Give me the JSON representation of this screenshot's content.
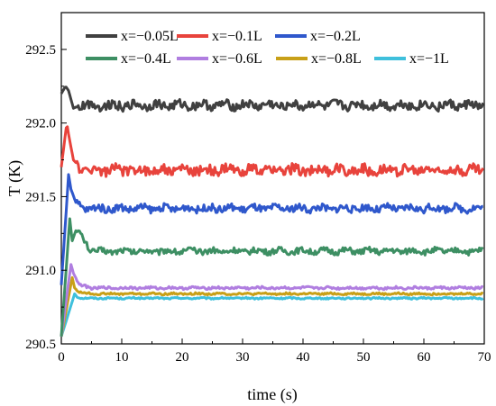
{
  "chart_data": {
    "type": "line",
    "title": "",
    "xlabel": "time (s)",
    "ylabel": "T (K)",
    "xlim": [
      0,
      70
    ],
    "ylim": [
      290.5,
      292.75
    ],
    "x_ticks": [
      0,
      10,
      20,
      30,
      40,
      50,
      60,
      70
    ],
    "x_tick_labels": [
      "0",
      "10",
      "20",
      "30",
      "40",
      "50",
      "60",
      "70"
    ],
    "y_ticks": [
      290.5,
      291.0,
      291.5,
      292.0,
      292.5
    ],
    "y_tick_labels": [
      "290.5",
      "291.0",
      "291.5",
      "292.0",
      "292.5"
    ],
    "grid": false,
    "legend_position": "top",
    "series": [
      {
        "name": "x=−0.05L",
        "color": "#404040",
        "steady": 292.12,
        "peak": 292.25,
        "noise": 0.03,
        "x": [
          0,
          0.7,
          1.2,
          2,
          3,
          70
        ],
        "y": [
          292.2,
          292.25,
          292.22,
          292.1,
          292.12,
          292.12
        ]
      },
      {
        "name": "x=−0.1L",
        "color": "#e8433c",
        "steady": 291.68,
        "peak": 292.0,
        "noise": 0.035,
        "x": [
          0,
          0.9,
          1.3,
          2,
          3.5,
          70
        ],
        "y": [
          291.7,
          292.0,
          291.9,
          291.75,
          291.68,
          291.68
        ]
      },
      {
        "name": "x=−0.2L",
        "color": "#2f58cc",
        "steady": 291.42,
        "peak": 291.65,
        "noise": 0.025,
        "x": [
          0,
          1.2,
          1.6,
          2.5,
          4,
          70
        ],
        "y": [
          290.9,
          291.65,
          291.55,
          291.45,
          291.42,
          291.42
        ]
      },
      {
        "name": "x=−0.4L",
        "color": "#3d8f63",
        "steady": 291.13,
        "peak": 291.35,
        "noise": 0.02,
        "x": [
          0,
          1.4,
          1.8,
          2.5,
          5,
          70
        ],
        "y": [
          290.55,
          291.35,
          291.2,
          291.28,
          291.13,
          291.13
        ]
      },
      {
        "name": "x=−0.6L",
        "color": "#b07ee0",
        "steady": 290.88,
        "peak": 291.04,
        "noise": 0.008,
        "x": [
          0,
          1.6,
          2,
          3,
          5,
          70
        ],
        "y": [
          290.55,
          291.04,
          290.98,
          290.9,
          290.88,
          290.88
        ]
      },
      {
        "name": "x=−0.8L",
        "color": "#c8a018",
        "steady": 290.84,
        "peak": 290.95,
        "noise": 0.006,
        "x": [
          0,
          1.8,
          2.2,
          3,
          5,
          70
        ],
        "y": [
          290.55,
          290.95,
          290.88,
          290.85,
          290.84,
          290.84
        ]
      },
      {
        "name": "x=−1L",
        "color": "#3fc0dc",
        "steady": 290.81,
        "peak": 290.84,
        "noise": 0.005,
        "x": [
          0,
          2.2,
          2.6,
          3.5,
          5,
          70
        ],
        "y": [
          290.55,
          290.84,
          290.82,
          290.81,
          290.81,
          290.81
        ]
      }
    ]
  }
}
